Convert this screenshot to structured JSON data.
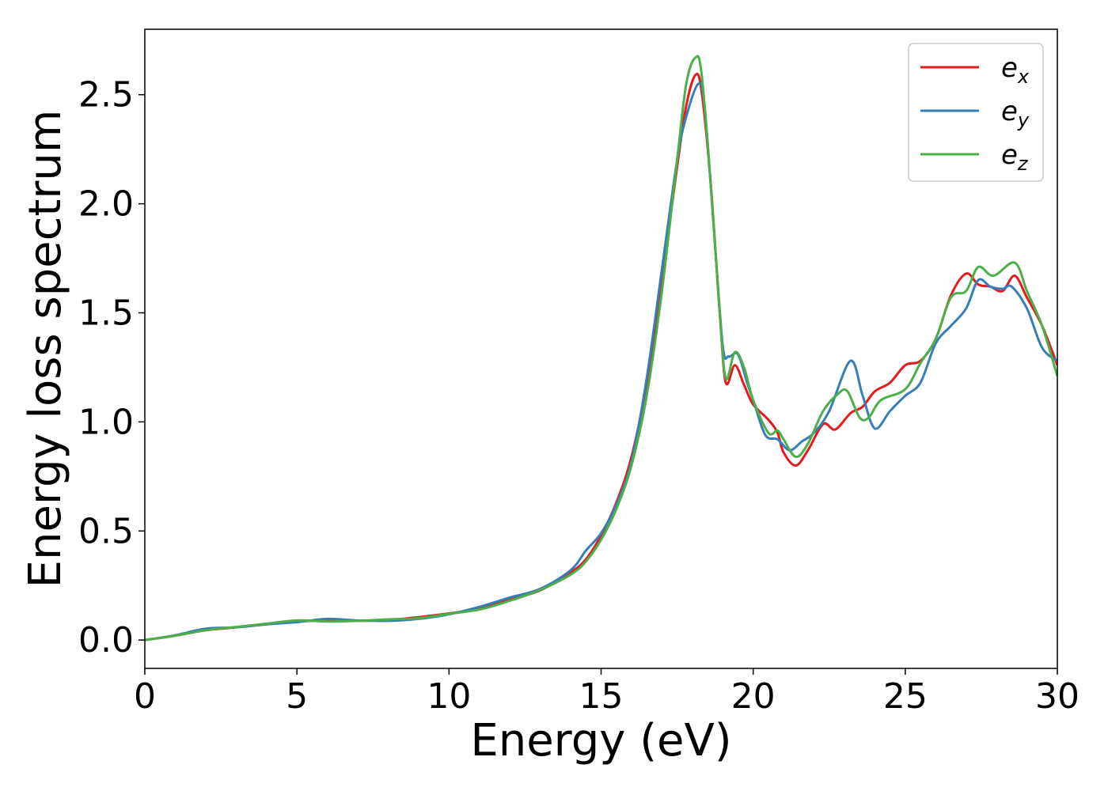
{
  "chart_data": {
    "type": "line",
    "title": "",
    "xlabel": "Energy (eV)",
    "ylabel": "Energy loss spectrum",
    "xlim": [
      0,
      30
    ],
    "ylim": [
      -0.13,
      2.8
    ],
    "xticks": [
      0,
      5,
      10,
      15,
      20,
      25,
      30
    ],
    "yticks": [
      0.0,
      0.5,
      1.0,
      1.5,
      2.0,
      2.5
    ],
    "xtick_labels": [
      "0",
      "5",
      "10",
      "15",
      "20",
      "25",
      "30"
    ],
    "ytick_labels": [
      "0.0",
      "0.5",
      "1.0",
      "1.5",
      "2.0",
      "2.5"
    ],
    "grid": false,
    "legend_position": "top-right",
    "series": [
      {
        "name": "e_x",
        "legend_main": "e",
        "legend_sub": "x",
        "color": "#e41a1c",
        "points": [
          [
            0,
            0.0
          ],
          [
            1,
            0.02
          ],
          [
            2,
            0.045
          ],
          [
            3,
            0.058
          ],
          [
            4,
            0.072
          ],
          [
            5,
            0.085
          ],
          [
            6,
            0.09
          ],
          [
            7,
            0.088
          ],
          [
            8,
            0.092
          ],
          [
            9,
            0.105
          ],
          [
            10,
            0.122
          ],
          [
            11,
            0.145
          ],
          [
            12,
            0.185
          ],
          [
            13,
            0.228
          ],
          [
            14,
            0.31
          ],
          [
            14.5,
            0.37
          ],
          [
            15,
            0.48
          ],
          [
            15.5,
            0.63
          ],
          [
            16,
            0.84
          ],
          [
            16.5,
            1.18
          ],
          [
            17,
            1.65
          ],
          [
            17.5,
            2.17
          ],
          [
            17.8,
            2.45
          ],
          [
            18.1,
            2.59
          ],
          [
            18.3,
            2.52
          ],
          [
            18.6,
            2.1
          ],
          [
            18.9,
            1.5
          ],
          [
            19.1,
            1.18
          ],
          [
            19.4,
            1.26
          ],
          [
            19.7,
            1.17
          ],
          [
            20,
            1.08
          ],
          [
            20.5,
            1.01
          ],
          [
            20.8,
            0.95
          ],
          [
            21,
            0.86
          ],
          [
            21.4,
            0.8
          ],
          [
            21.8,
            0.87
          ],
          [
            22.3,
            0.99
          ],
          [
            22.7,
            0.965
          ],
          [
            23.2,
            1.04
          ],
          [
            23.6,
            1.07
          ],
          [
            24,
            1.14
          ],
          [
            24.5,
            1.18
          ],
          [
            25,
            1.26
          ],
          [
            25.5,
            1.28
          ],
          [
            26,
            1.38
          ],
          [
            26.5,
            1.58
          ],
          [
            27,
            1.68
          ],
          [
            27.4,
            1.63
          ],
          [
            27.8,
            1.62
          ],
          [
            28.2,
            1.6
          ],
          [
            28.6,
            1.67
          ],
          [
            29,
            1.57
          ],
          [
            29.5,
            1.44
          ],
          [
            30,
            1.26
          ]
        ]
      },
      {
        "name": "e_y",
        "legend_main": "e",
        "legend_sub": "y",
        "color": "#377eb8",
        "points": [
          [
            0,
            0.0
          ],
          [
            1,
            0.022
          ],
          [
            2,
            0.052
          ],
          [
            3,
            0.058
          ],
          [
            4,
            0.072
          ],
          [
            5,
            0.082
          ],
          [
            6,
            0.097
          ],
          [
            7,
            0.09
          ],
          [
            8,
            0.088
          ],
          [
            9,
            0.097
          ],
          [
            10,
            0.118
          ],
          [
            11,
            0.152
          ],
          [
            12,
            0.195
          ],
          [
            13,
            0.235
          ],
          [
            14,
            0.32
          ],
          [
            14.5,
            0.41
          ],
          [
            15,
            0.49
          ],
          [
            15.5,
            0.62
          ],
          [
            16,
            0.82
          ],
          [
            16.5,
            1.2
          ],
          [
            17,
            1.7
          ],
          [
            17.5,
            2.2
          ],
          [
            17.8,
            2.4
          ],
          [
            18.2,
            2.55
          ],
          [
            18.4,
            2.45
          ],
          [
            18.7,
            1.9
          ],
          [
            19,
            1.35
          ],
          [
            19.2,
            1.3
          ],
          [
            19.5,
            1.31
          ],
          [
            19.8,
            1.18
          ],
          [
            20,
            1.1
          ],
          [
            20.4,
            0.94
          ],
          [
            20.8,
            0.92
          ],
          [
            21.2,
            0.87
          ],
          [
            21.6,
            0.91
          ],
          [
            22,
            0.95
          ],
          [
            22.5,
            1.05
          ],
          [
            23.2,
            1.28
          ],
          [
            23.6,
            1.12
          ],
          [
            24,
            0.97
          ],
          [
            24.5,
            1.05
          ],
          [
            25,
            1.12
          ],
          [
            25.5,
            1.18
          ],
          [
            26,
            1.36
          ],
          [
            26.5,
            1.44
          ],
          [
            27,
            1.52
          ],
          [
            27.4,
            1.65
          ],
          [
            27.8,
            1.62
          ],
          [
            28.2,
            1.61
          ],
          [
            28.5,
            1.62
          ],
          [
            29,
            1.52
          ],
          [
            29.5,
            1.34
          ],
          [
            30,
            1.28
          ]
        ]
      },
      {
        "name": "e_z",
        "legend_main": "e",
        "legend_sub": "z",
        "color": "#4daf4a",
        "points": [
          [
            0,
            0.0
          ],
          [
            1,
            0.02
          ],
          [
            2,
            0.045
          ],
          [
            3,
            0.06
          ],
          [
            4,
            0.075
          ],
          [
            5,
            0.09
          ],
          [
            6,
            0.085
          ],
          [
            7,
            0.088
          ],
          [
            8,
            0.095
          ],
          [
            9,
            0.1
          ],
          [
            10,
            0.12
          ],
          [
            11,
            0.14
          ],
          [
            12,
            0.18
          ],
          [
            13,
            0.23
          ],
          [
            14,
            0.3
          ],
          [
            14.5,
            0.36
          ],
          [
            15,
            0.46
          ],
          [
            15.5,
            0.6
          ],
          [
            16,
            0.8
          ],
          [
            16.5,
            1.12
          ],
          [
            17,
            1.6
          ],
          [
            17.5,
            2.2
          ],
          [
            17.8,
            2.55
          ],
          [
            18.1,
            2.67
          ],
          [
            18.3,
            2.6
          ],
          [
            18.6,
            2.1
          ],
          [
            18.9,
            1.5
          ],
          [
            19.1,
            1.2
          ],
          [
            19.4,
            1.32
          ],
          [
            19.7,
            1.25
          ],
          [
            20,
            1.1
          ],
          [
            20.5,
            0.95
          ],
          [
            20.8,
            0.96
          ],
          [
            21,
            0.92
          ],
          [
            21.4,
            0.84
          ],
          [
            21.8,
            0.9
          ],
          [
            22.3,
            1.05
          ],
          [
            22.8,
            1.13
          ],
          [
            23.1,
            1.14
          ],
          [
            23.5,
            1.02
          ],
          [
            23.8,
            1.02
          ],
          [
            24.2,
            1.1
          ],
          [
            25,
            1.15
          ],
          [
            25.5,
            1.27
          ],
          [
            26,
            1.38
          ],
          [
            26.5,
            1.57
          ],
          [
            27,
            1.6
          ],
          [
            27.4,
            1.71
          ],
          [
            27.9,
            1.67
          ],
          [
            28.6,
            1.73
          ],
          [
            29,
            1.6
          ],
          [
            29.5,
            1.44
          ],
          [
            30,
            1.21
          ]
        ]
      }
    ]
  }
}
